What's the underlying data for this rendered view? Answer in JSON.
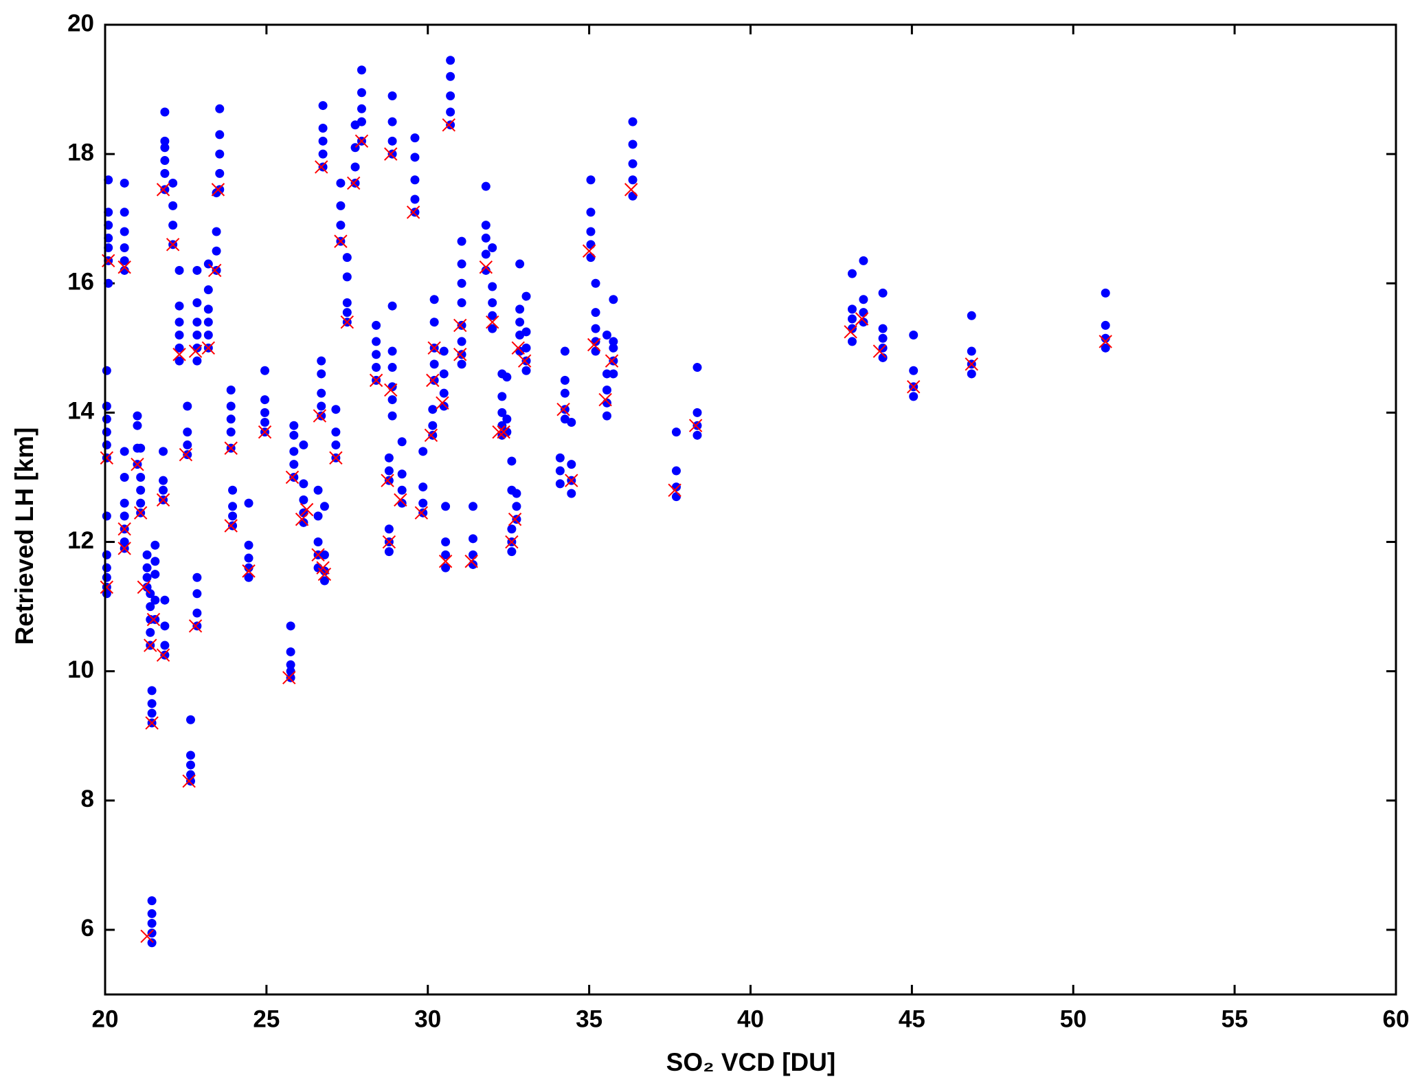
{
  "chart_data": {
    "type": "scatter",
    "x_label": "SO₂ VCD [DU]",
    "y_label": "Retrieved LH [km]",
    "xlim": [
      20,
      60
    ],
    "xticks": [
      20,
      25,
      30,
      35,
      40,
      45,
      50,
      55,
      60
    ],
    "ylim": [
      5,
      20
    ],
    "yticks": [
      6,
      8,
      10,
      12,
      14,
      16,
      18,
      20
    ],
    "grid": false,
    "series": [
      {
        "color": "#0000ff",
        "marker": "dot",
        "x": [
          20.05,
          20.05,
          20.05,
          20.05,
          20.05,
          20.05,
          20.05,
          20.05,
          20.05,
          20.05,
          20.05,
          20.05,
          20.1,
          20.1,
          20.1,
          20.1,
          20.1,
          20.1,
          20.1,
          20.6,
          20.6,
          20.6,
          20.6,
          20.6,
          20.6,
          20.6,
          20.6,
          20.6,
          20.6,
          20.6,
          20.6,
          20.6,
          21.0,
          21.0,
          21.0,
          21.0,
          21.1,
          21.1,
          21.1,
          21.1,
          21.1,
          21.3,
          21.3,
          21.3,
          21.3,
          21.4,
          21.4,
          21.4,
          21.4,
          21.4,
          21.45,
          21.45,
          21.45,
          21.45,
          21.45,
          21.45,
          21.45,
          21.45,
          21.45,
          21.55,
          21.55,
          21.55,
          21.55,
          21.55,
          21.8,
          21.8,
          21.8,
          21.8,
          21.85,
          21.85,
          21.85,
          21.85,
          21.85,
          21.85,
          21.85,
          21.85,
          21.85,
          21.85,
          22.1,
          22.1,
          22.1,
          22.1,
          22.3,
          22.3,
          22.3,
          22.3,
          22.3,
          22.3,
          22.55,
          22.55,
          22.55,
          22.55,
          22.65,
          22.65,
          22.65,
          22.65,
          22.65,
          22.85,
          22.85,
          22.85,
          22.85,
          22.85,
          22.85,
          22.85,
          22.85,
          22.85,
          22.85,
          23.2,
          23.2,
          23.2,
          23.2,
          23.2,
          23.2,
          23.45,
          23.45,
          23.45,
          23.45,
          23.55,
          23.55,
          23.55,
          23.55,
          23.55,
          23.9,
          23.9,
          23.9,
          23.9,
          23.9,
          23.95,
          23.95,
          23.95,
          23.95,
          24.45,
          24.45,
          24.45,
          24.45,
          24.45,
          24.95,
          24.95,
          24.95,
          24.95,
          24.95,
          25.75,
          25.75,
          25.75,
          25.75,
          25.75,
          25.85,
          25.85,
          25.85,
          25.85,
          25.85,
          26.15,
          26.15,
          26.15,
          26.15,
          26.15,
          26.6,
          26.6,
          26.6,
          26.6,
          26.6,
          26.7,
          26.7,
          26.7,
          26.7,
          26.7,
          26.75,
          26.75,
          26.75,
          26.75,
          26.75,
          26.8,
          26.8,
          26.8,
          26.8,
          27.15,
          27.15,
          27.15,
          27.15,
          27.3,
          27.3,
          27.3,
          27.3,
          27.5,
          27.5,
          27.5,
          27.5,
          27.5,
          27.75,
          27.75,
          27.75,
          27.75,
          27.95,
          27.95,
          27.95,
          27.95,
          27.95,
          28.4,
          28.4,
          28.4,
          28.4,
          28.4,
          28.8,
          28.8,
          28.8,
          28.8,
          28.8,
          28.8,
          28.9,
          28.9,
          28.9,
          28.9,
          28.9,
          28.9,
          28.9,
          28.9,
          28.9,
          28.9,
          29.2,
          29.2,
          29.2,
          29.2,
          29.6,
          29.6,
          29.6,
          29.6,
          29.6,
          29.85,
          29.85,
          29.85,
          29.85,
          30.15,
          30.15,
          30.15,
          30.2,
          30.2,
          30.2,
          30.2,
          30.2,
          30.5,
          30.5,
          30.5,
          30.5,
          30.55,
          30.55,
          30.55,
          30.55,
          30.7,
          30.7,
          30.7,
          30.7,
          30.7,
          31.05,
          31.05,
          31.05,
          31.05,
          31.05,
          31.05,
          31.05,
          31.05,
          31.4,
          31.4,
          31.4,
          31.4,
          31.8,
          31.8,
          31.8,
          31.8,
          31.8,
          32.0,
          32.0,
          32.0,
          32.0,
          32.0,
          32.3,
          32.3,
          32.3,
          32.3,
          32.3,
          32.45,
          32.45,
          32.45,
          32.6,
          32.6,
          32.6,
          32.6,
          32.6,
          32.75,
          32.75,
          32.75,
          32.85,
          32.85,
          32.85,
          32.85,
          32.85,
          33.05,
          33.05,
          33.05,
          33.05,
          33.05,
          34.1,
          34.1,
          34.1,
          34.25,
          34.25,
          34.25,
          34.25,
          34.25,
          34.45,
          34.45,
          34.45,
          34.45,
          35.05,
          35.05,
          35.05,
          35.05,
          35.05,
          35.2,
          35.2,
          35.2,
          35.2,
          35.2,
          35.55,
          35.55,
          35.55,
          35.55,
          35.55,
          35.75,
          35.75,
          35.75,
          35.75,
          35.75,
          36.35,
          36.35,
          36.35,
          36.35,
          36.35,
          37.7,
          37.7,
          37.7,
          37.7,
          38.35,
          38.35,
          38.35,
          38.35,
          43.15,
          43.15,
          43.15,
          43.15,
          43.15,
          43.5,
          43.5,
          43.5,
          43.5,
          44.1,
          44.1,
          44.1,
          44.1,
          44.1,
          45.05,
          45.05,
          45.05,
          45.05,
          46.85,
          46.85,
          46.85,
          46.85,
          51.0,
          51.0,
          51.0,
          51.0
        ],
        "values": [
          13.3,
          13.5,
          13.7,
          13.9,
          14.1,
          14.65,
          11.2,
          11.3,
          11.45,
          11.6,
          11.8,
          12.4,
          16.0,
          16.35,
          16.55,
          16.7,
          16.9,
          17.1,
          17.6,
          11.9,
          12.0,
          12.2,
          12.4,
          12.6,
          13.0,
          13.4,
          16.2,
          16.35,
          16.55,
          16.8,
          17.1,
          17.55,
          13.2,
          13.45,
          13.8,
          13.95,
          12.45,
          12.6,
          12.8,
          13.0,
          13.45,
          11.3,
          11.45,
          11.6,
          11.8,
          10.4,
          10.6,
          10.8,
          11.0,
          11.2,
          9.2,
          9.35,
          9.5,
          9.7,
          5.8,
          5.95,
          6.1,
          6.25,
          6.45,
          10.8,
          11.1,
          11.5,
          11.7,
          11.95,
          12.65,
          12.8,
          12.95,
          13.4,
          10.25,
          10.4,
          10.7,
          11.1,
          17.45,
          17.7,
          17.9,
          18.1,
          18.2,
          18.65,
          16.6,
          16.9,
          17.2,
          17.55,
          14.8,
          15.0,
          15.2,
          15.4,
          15.65,
          16.2,
          13.35,
          13.5,
          13.7,
          14.1,
          8.3,
          8.4,
          8.55,
          8.7,
          9.25,
          10.7,
          10.9,
          11.2,
          11.45,
          14.8,
          15.0,
          15.2,
          15.4,
          15.7,
          16.2,
          15.0,
          15.2,
          15.4,
          15.6,
          15.9,
          16.3,
          16.2,
          16.5,
          16.8,
          17.4,
          17.45,
          17.7,
          18.0,
          18.3,
          18.7,
          13.45,
          13.7,
          13.9,
          14.1,
          14.35,
          12.25,
          12.4,
          12.55,
          12.8,
          11.45,
          11.6,
          11.75,
          11.95,
          12.6,
          13.7,
          13.85,
          14.0,
          14.2,
          14.65,
          9.9,
          10.0,
          10.1,
          10.3,
          10.7,
          13.0,
          13.2,
          13.4,
          13.65,
          13.8,
          12.3,
          12.45,
          12.65,
          12.9,
          13.5,
          11.6,
          11.8,
          12.0,
          12.4,
          12.8,
          13.95,
          14.1,
          14.3,
          14.6,
          14.8,
          17.8,
          18.0,
          18.2,
          18.4,
          18.75,
          11.4,
          11.55,
          11.8,
          12.55,
          13.3,
          13.5,
          13.7,
          14.05,
          16.65,
          16.9,
          17.2,
          17.55,
          15.4,
          15.55,
          15.7,
          16.1,
          16.4,
          17.55,
          17.8,
          18.1,
          18.45,
          18.2,
          18.5,
          18.7,
          18.95,
          19.3,
          14.5,
          14.7,
          14.9,
          15.1,
          15.35,
          11.85,
          12.0,
          12.2,
          12.95,
          13.1,
          13.3,
          13.95,
          14.2,
          14.4,
          14.7,
          14.95,
          15.65,
          18.0,
          18.2,
          18.5,
          18.9,
          12.6,
          12.8,
          13.05,
          13.55,
          17.1,
          17.3,
          17.6,
          17.95,
          18.25,
          12.45,
          12.6,
          12.85,
          13.4,
          13.65,
          13.8,
          14.05,
          14.5,
          14.75,
          15.0,
          15.4,
          15.75,
          14.1,
          14.3,
          14.6,
          14.95,
          11.6,
          11.8,
          12.0,
          12.55,
          18.45,
          18.65,
          18.9,
          19.2,
          19.45,
          14.75,
          14.9,
          15.1,
          15.35,
          15.7,
          16.0,
          16.3,
          16.65,
          11.65,
          11.8,
          12.05,
          12.55,
          16.2,
          16.45,
          16.7,
          16.9,
          17.5,
          15.3,
          15.5,
          15.7,
          15.95,
          16.55,
          13.65,
          13.8,
          14.0,
          14.25,
          14.6,
          13.7,
          13.9,
          14.55,
          11.85,
          12.0,
          12.2,
          12.8,
          13.25,
          12.35,
          12.55,
          12.75,
          14.95,
          15.2,
          15.4,
          15.6,
          16.3,
          14.65,
          14.8,
          15.0,
          15.25,
          15.8,
          12.9,
          13.1,
          13.3,
          13.9,
          14.05,
          14.3,
          14.5,
          14.95,
          12.75,
          12.95,
          13.2,
          13.85,
          16.4,
          16.6,
          16.8,
          17.1,
          17.6,
          14.95,
          15.1,
          15.3,
          15.55,
          16.0,
          13.95,
          14.15,
          14.35,
          14.6,
          15.2,
          14.6,
          14.8,
          15.0,
          15.1,
          15.75,
          17.35,
          17.6,
          17.85,
          18.15,
          18.5,
          12.7,
          12.85,
          13.1,
          13.7,
          13.65,
          13.8,
          14.0,
          14.7,
          15.1,
          15.3,
          15.45,
          15.6,
          16.15,
          15.4,
          15.55,
          15.75,
          16.35,
          14.85,
          15.0,
          15.15,
          15.3,
          15.85,
          14.25,
          14.4,
          14.65,
          15.2,
          14.6,
          14.75,
          14.95,
          15.5,
          15.0,
          15.15,
          15.35,
          15.85
        ]
      },
      {
        "color": "#ff0000",
        "marker": "x",
        "x": [
          20.05,
          20.05,
          20.1,
          20.6,
          20.6,
          20.6,
          21.0,
          21.1,
          21.2,
          21.4,
          21.45,
          21.3,
          21.5,
          21.8,
          21.8,
          21.8,
          22.1,
          22.3,
          22.5,
          22.6,
          22.8,
          22.8,
          23.2,
          23.4,
          23.5,
          23.9,
          23.9,
          24.45,
          24.95,
          25.7,
          25.8,
          26.1,
          26.25,
          26.6,
          26.65,
          26.7,
          26.75,
          26.8,
          27.15,
          27.3,
          27.5,
          27.7,
          27.95,
          28.4,
          28.8,
          28.75,
          28.85,
          28.85,
          29.15,
          29.55,
          29.8,
          30.1,
          30.15,
          30.2,
          30.45,
          30.55,
          30.65,
          31.0,
          31.0,
          31.35,
          31.8,
          32.0,
          32.2,
          32.35,
          32.6,
          32.7,
          32.8,
          33.0,
          34.2,
          34.45,
          35.0,
          35.15,
          35.5,
          35.7,
          36.3,
          37.65,
          38.3,
          43.1,
          43.45,
          44.0,
          45.05,
          46.85,
          51.0
        ],
        "values": [
          13.3,
          11.3,
          16.35,
          11.9,
          12.2,
          16.25,
          13.2,
          12.45,
          11.3,
          10.4,
          9.2,
          5.9,
          10.8,
          12.65,
          10.25,
          17.45,
          16.6,
          14.9,
          13.35,
          8.3,
          10.7,
          14.95,
          15.0,
          16.2,
          17.45,
          13.45,
          12.25,
          11.55,
          13.7,
          9.9,
          13.0,
          12.35,
          12.5,
          11.8,
          13.95,
          17.8,
          11.6,
          11.5,
          13.3,
          16.65,
          15.4,
          17.55,
          18.2,
          14.5,
          12.0,
          12.95,
          14.35,
          18.0,
          12.65,
          17.1,
          12.45,
          13.65,
          14.5,
          15.0,
          14.15,
          11.7,
          18.45,
          14.9,
          15.35,
          11.7,
          16.25,
          15.4,
          13.7,
          13.7,
          12.0,
          12.35,
          15.0,
          14.8,
          14.05,
          12.95,
          16.5,
          15.05,
          14.2,
          14.8,
          17.45,
          12.8,
          13.8,
          15.25,
          15.45,
          14.95,
          14.4,
          14.75,
          15.1
        ]
      }
    ]
  }
}
